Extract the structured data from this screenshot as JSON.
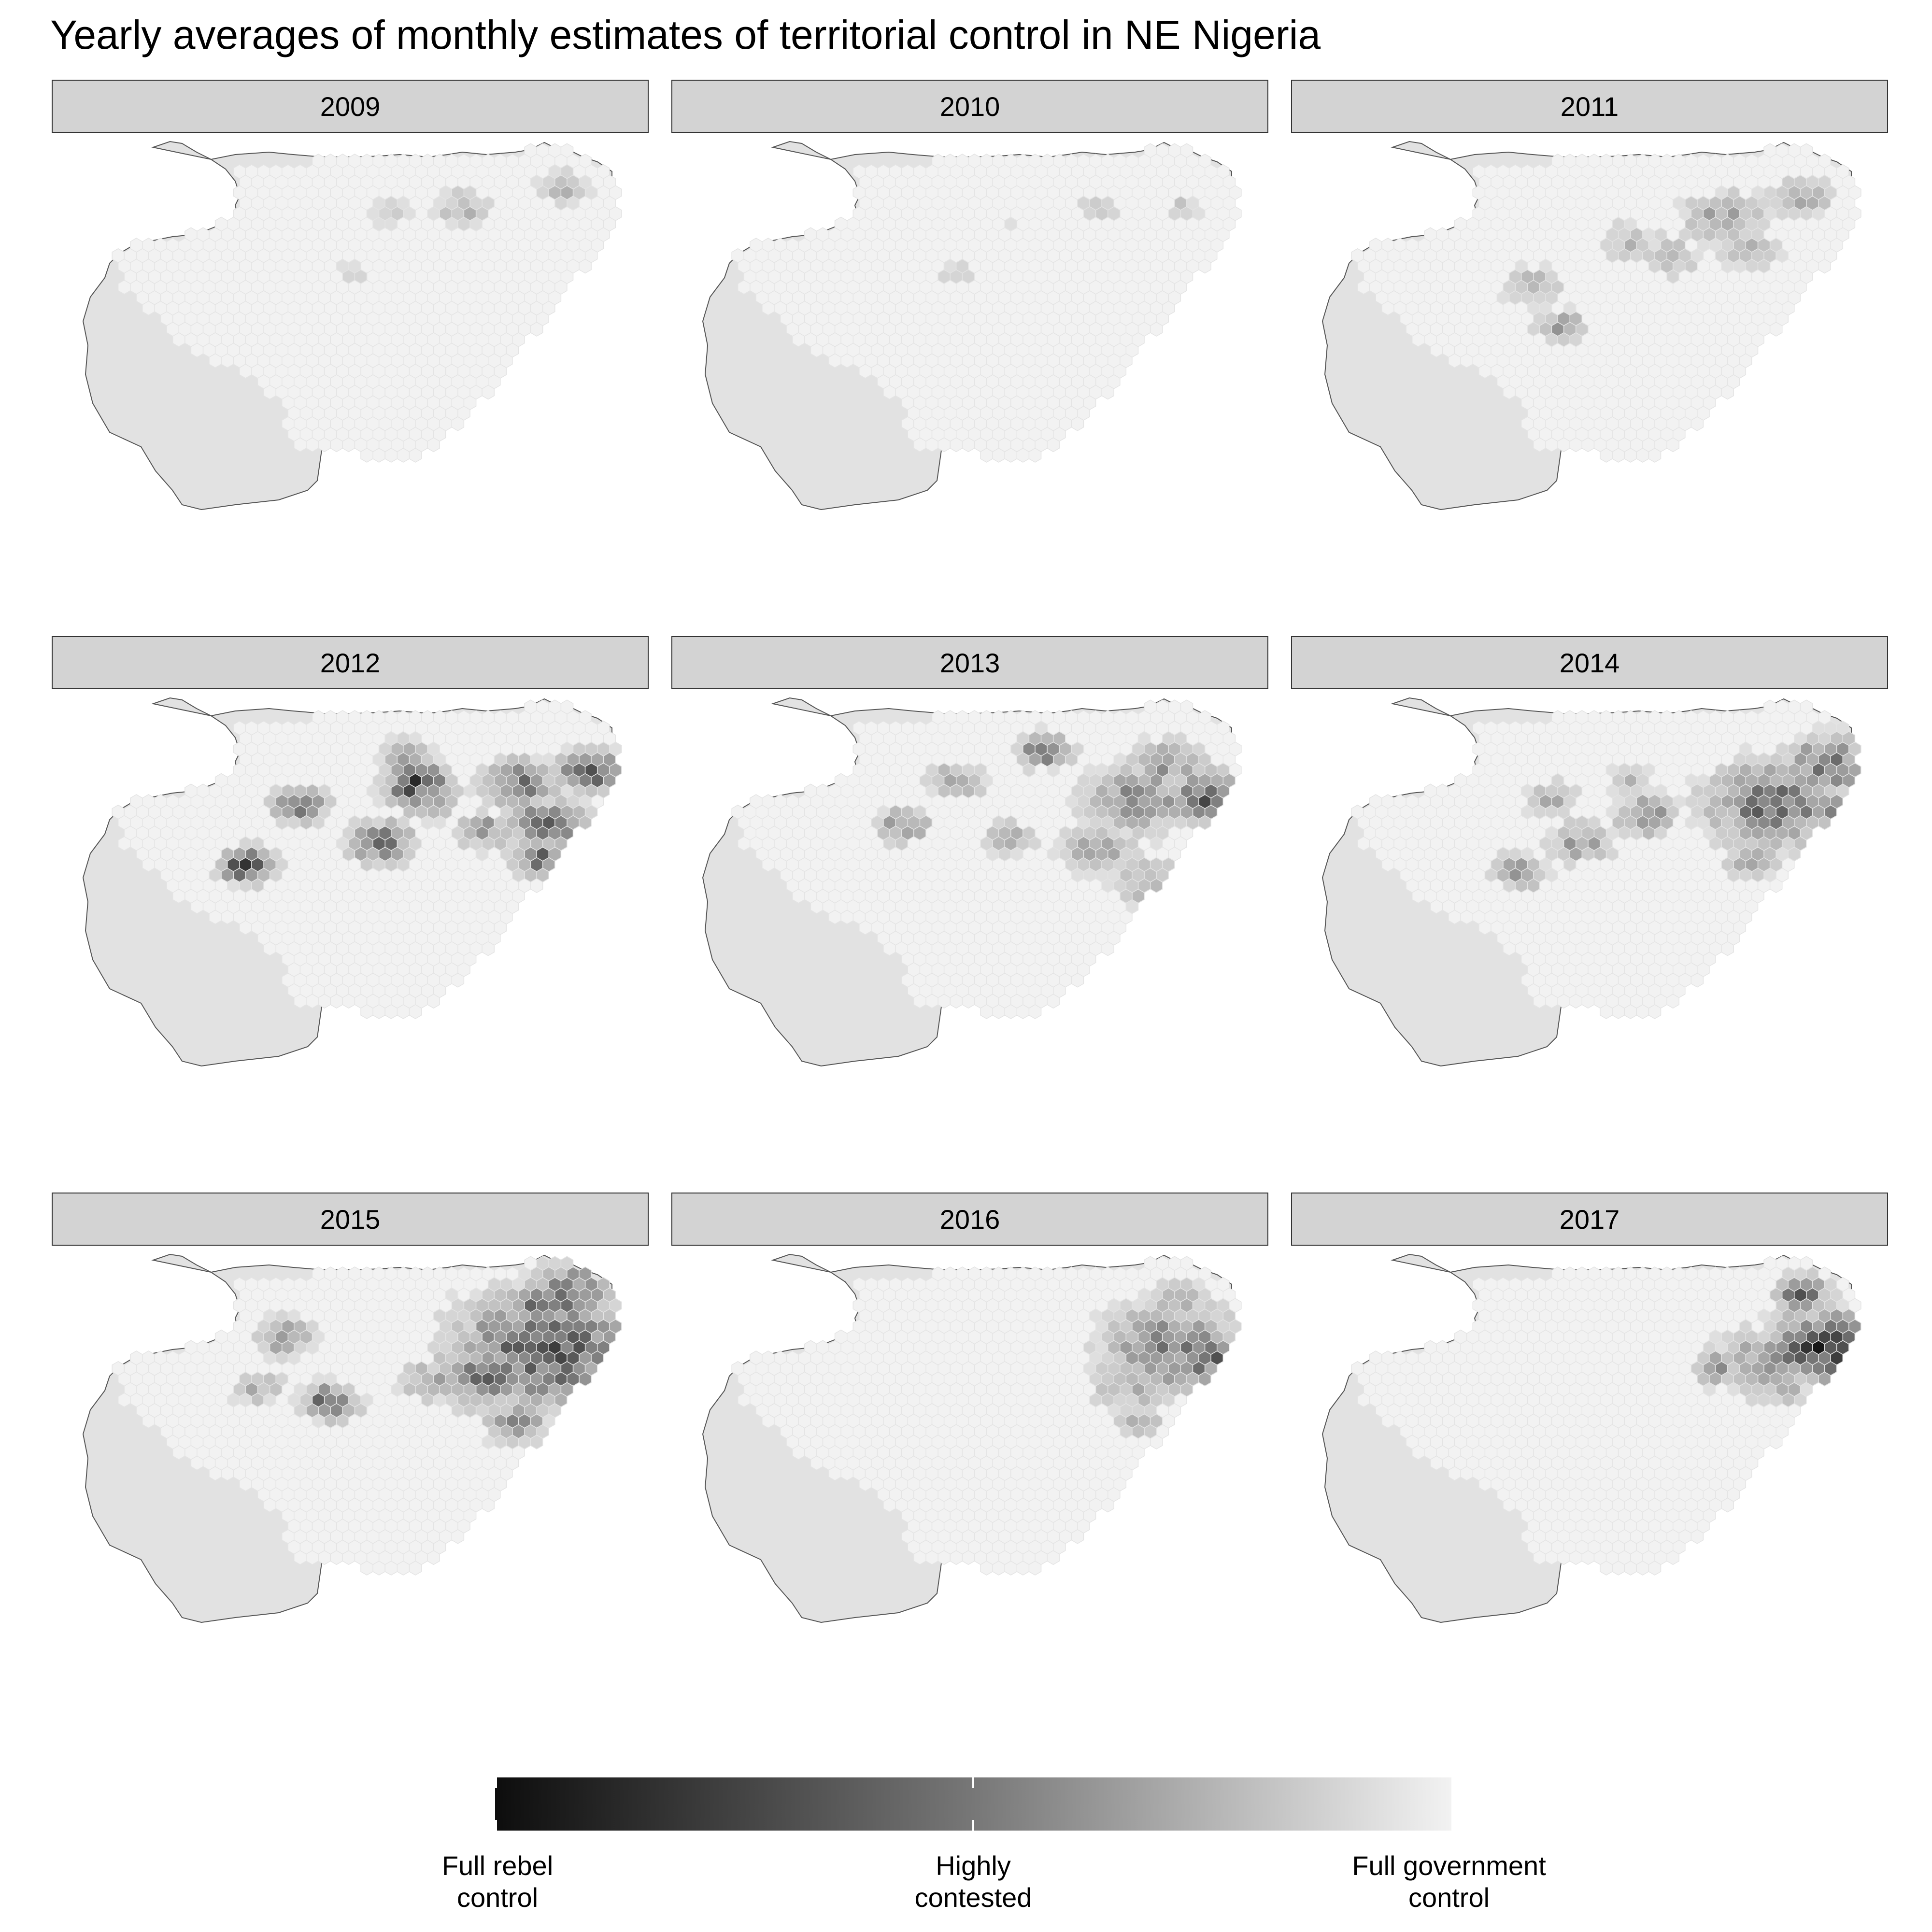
{
  "title": "Yearly averages of monthly estimates of territorial control in NE Nigeria",
  "colors": {
    "country_fill": "#e2e2e2",
    "country_stroke": "#555555",
    "strip_fill": "#d3d3d3",
    "cell_full_government": "#f2f2f2",
    "cell_full_rebel": "#0d0d0d"
  },
  "panels": [
    {
      "year": "2009",
      "hotspots": [
        [
          0.69,
          0.2,
          0.3,
          0.05
        ],
        [
          0.55,
          0.22,
          0.2,
          0.04
        ],
        [
          0.88,
          0.14,
          0.3,
          0.05
        ],
        [
          0.48,
          0.38,
          0.18,
          0.04
        ]
      ]
    },
    {
      "year": "2010",
      "hotspots": [
        [
          0.72,
          0.2,
          0.15,
          0.05
        ],
        [
          0.88,
          0.2,
          0.2,
          0.05
        ],
        [
          0.55,
          0.25,
          0.1,
          0.04
        ],
        [
          0.45,
          0.4,
          0.15,
          0.04
        ]
      ]
    },
    {
      "year": "2011",
      "hotspots": [
        [
          0.73,
          0.23,
          0.35,
          0.08
        ],
        [
          0.88,
          0.17,
          0.3,
          0.06
        ],
        [
          0.56,
          0.3,
          0.25,
          0.06
        ],
        [
          0.37,
          0.43,
          0.25,
          0.06
        ],
        [
          0.42,
          0.55,
          0.35,
          0.05
        ],
        [
          0.78,
          0.33,
          0.3,
          0.06
        ],
        [
          0.63,
          0.35,
          0.25,
          0.06
        ]
      ]
    },
    {
      "year": "2012",
      "hotspots": [
        [
          0.6,
          0.26,
          0.75,
          0.06
        ],
        [
          0.8,
          0.26,
          0.55,
          0.07
        ],
        [
          0.93,
          0.22,
          0.65,
          0.06
        ],
        [
          0.38,
          0.32,
          0.55,
          0.05
        ],
        [
          0.28,
          0.5,
          0.8,
          0.05
        ],
        [
          0.53,
          0.43,
          0.6,
          0.06
        ],
        [
          0.85,
          0.38,
          0.6,
          0.07
        ],
        [
          0.83,
          0.48,
          0.6,
          0.05
        ],
        [
          0.73,
          0.4,
          0.45,
          0.05
        ],
        [
          0.62,
          0.3,
          0.4,
          0.06
        ],
        [
          0.58,
          0.18,
          0.35,
          0.05
        ]
      ]
    },
    {
      "year": "2013",
      "hotspots": [
        [
          0.8,
          0.3,
          0.45,
          0.1
        ],
        [
          0.93,
          0.3,
          0.7,
          0.07
        ],
        [
          0.85,
          0.2,
          0.4,
          0.07
        ],
        [
          0.62,
          0.16,
          0.55,
          0.05
        ],
        [
          0.45,
          0.25,
          0.4,
          0.05
        ],
        [
          0.35,
          0.38,
          0.45,
          0.05
        ],
        [
          0.72,
          0.45,
          0.35,
          0.07
        ],
        [
          0.82,
          0.55,
          0.35,
          0.07
        ],
        [
          0.55,
          0.42,
          0.3,
          0.05
        ]
      ]
    },
    {
      "year": "2014",
      "hotspots": [
        [
          0.82,
          0.32,
          0.6,
          0.12
        ],
        [
          0.93,
          0.2,
          0.55,
          0.08
        ],
        [
          0.97,
          0.34,
          0.75,
          0.05
        ],
        [
          0.58,
          0.35,
          0.45,
          0.06
        ],
        [
          0.46,
          0.43,
          0.4,
          0.06
        ],
        [
          0.4,
          0.3,
          0.3,
          0.05
        ],
        [
          0.34,
          0.52,
          0.4,
          0.05
        ],
        [
          0.78,
          0.48,
          0.3,
          0.06
        ],
        [
          0.55,
          0.25,
          0.25,
          0.05
        ]
      ]
    },
    {
      "year": "2015",
      "hotspots": [
        [
          0.85,
          0.28,
          0.7,
          0.16
        ],
        [
          0.9,
          0.12,
          0.6,
          0.08
        ],
        [
          0.74,
          0.36,
          0.55,
          0.1
        ],
        [
          0.63,
          0.38,
          0.35,
          0.06
        ],
        [
          0.44,
          0.44,
          0.65,
          0.05
        ],
        [
          0.35,
          0.25,
          0.45,
          0.05
        ],
        [
          0.3,
          0.4,
          0.3,
          0.05
        ],
        [
          0.79,
          0.5,
          0.45,
          0.06
        ],
        [
          0.82,
          0.14,
          0.65,
          0.04
        ]
      ]
    },
    {
      "year": "2016",
      "hotspots": [
        [
          0.86,
          0.28,
          0.5,
          0.13
        ],
        [
          0.93,
          0.32,
          0.6,
          0.07
        ],
        [
          0.88,
          0.14,
          0.3,
          0.06
        ],
        [
          0.78,
          0.4,
          0.3,
          0.07
        ],
        [
          0.8,
          0.5,
          0.3,
          0.05
        ]
      ]
    },
    {
      "year": "2017",
      "hotspots": [
        [
          0.92,
          0.28,
          0.8,
          0.1
        ],
        [
          0.88,
          0.12,
          0.6,
          0.05
        ],
        [
          0.82,
          0.32,
          0.4,
          0.1
        ],
        [
          0.72,
          0.34,
          0.4,
          0.05
        ],
        [
          0.85,
          0.4,
          0.3,
          0.05
        ]
      ]
    }
  ],
  "legend": {
    "left_label": "Full rebel\ncontrol",
    "mid_label": "Highly\ncontested",
    "right_label": "Full government\ncontrol"
  }
}
